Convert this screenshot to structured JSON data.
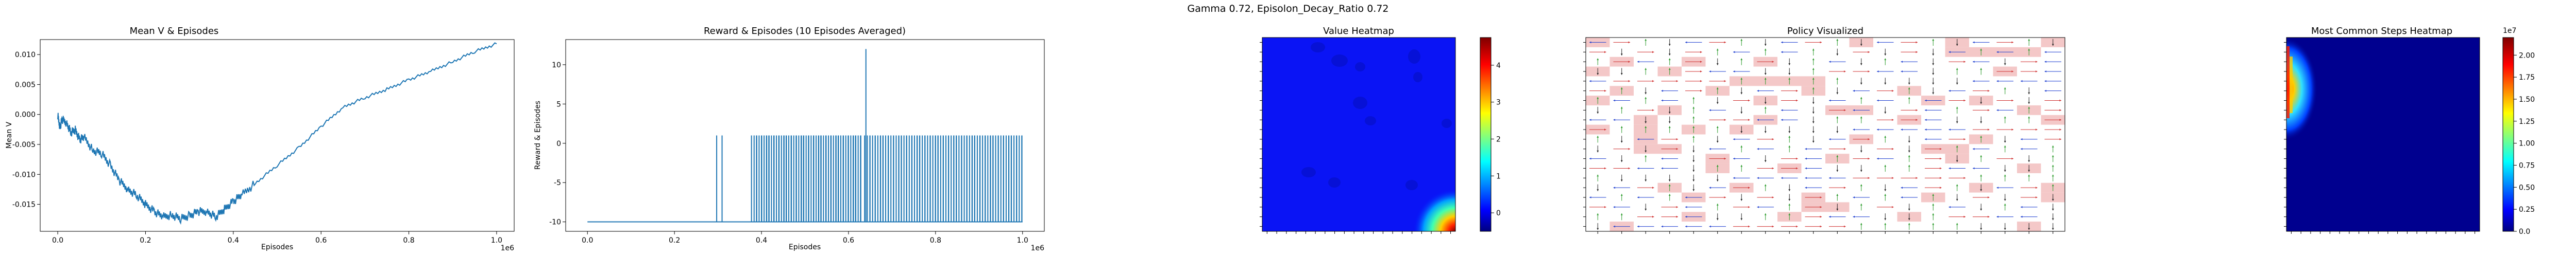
{
  "figure": {
    "suptitle": "Gamma  0.72, Episolon_Decay_Ratio 0.72"
  },
  "chart_data": [
    {
      "type": "line",
      "title": "Mean V & Episodes",
      "xlabel": "Episodes",
      "ylabel": "Mean V",
      "x_offset_label": "1e6",
      "xlim": [
        -0.04,
        1.04
      ],
      "ylim": [
        -0.0195,
        0.0125
      ],
      "xticks": [
        0.0,
        0.2,
        0.4,
        0.6,
        0.8,
        1.0
      ],
      "xtick_labels": [
        "0.0",
        "0.2",
        "0.4",
        "0.6",
        "0.8",
        "1.0"
      ],
      "yticks": [
        -0.015,
        -0.01,
        -0.005,
        0.0,
        0.005,
        0.01
      ],
      "ytick_labels": [
        "-0.015",
        "-0.010",
        "-0.005",
        "0.000",
        "0.005",
        "0.010"
      ],
      "color": "#1f77b4",
      "series": [
        {
          "x": [
            0.0,
            0.005,
            0.01,
            0.02,
            0.03,
            0.04,
            0.05,
            0.06,
            0.08,
            0.1,
            0.12,
            0.14,
            0.16,
            0.18,
            0.2,
            0.22,
            0.24,
            0.26,
            0.28,
            0.3,
            0.32,
            0.34,
            0.36,
            0.38,
            0.4,
            0.42,
            0.45,
            0.5,
            0.55,
            0.6,
            0.65,
            0.7,
            0.75,
            0.8,
            0.85,
            0.9,
            0.95,
            1.0
          ],
          "values": [
            -0.0001,
            -0.0022,
            -0.0008,
            -0.0014,
            -0.003,
            -0.0026,
            -0.0042,
            -0.0038,
            -0.006,
            -0.0065,
            -0.0085,
            -0.011,
            -0.0125,
            -0.0135,
            -0.015,
            -0.0162,
            -0.0171,
            -0.0168,
            -0.0174,
            -0.0169,
            -0.0162,
            -0.0162,
            -0.0171,
            -0.0158,
            -0.0145,
            -0.0134,
            -0.0115,
            -0.0085,
            -0.0055,
            -0.002,
            0.0012,
            0.0028,
            0.0042,
            0.0058,
            0.0072,
            0.0088,
            0.0105,
            0.0118
          ]
        }
      ]
    },
    {
      "type": "line",
      "title": "Reward & Episodes (10 Episodes Averaged)",
      "xlabel": "Episodes",
      "ylabel": "Reward & Episodes",
      "x_offset_label": "1e6",
      "xlim": [
        -0.05,
        1.05
      ],
      "ylim": [
        -11.2,
        13.2
      ],
      "xticks": [
        0.0,
        0.2,
        0.4,
        0.6,
        0.8,
        1.0
      ],
      "xtick_labels": [
        "0.0",
        "0.2",
        "0.4",
        "0.6",
        "0.8",
        "1.0"
      ],
      "yticks": [
        -10,
        -5,
        0,
        5,
        10
      ],
      "ytick_labels": [
        "-10",
        "-5",
        "0",
        "5",
        "10"
      ],
      "color": "#1f77b4",
      "baseline": -10,
      "high": 1,
      "spike": {
        "x": 0.64,
        "value": 12
      },
      "segments": [
        {
          "start": 0.3,
          "end": 0.31,
          "count": 2
        },
        {
          "start": 0.38,
          "end": 0.63,
          "count": 70
        },
        {
          "start": 0.64,
          "end": 1.0,
          "count": 95
        }
      ]
    },
    {
      "type": "heatmap",
      "title": "Value Heatmap",
      "colorbar_ticks": [
        0,
        1,
        2,
        3,
        4
      ],
      "colorbar_tick_labels": [
        "0",
        "1",
        "2",
        "3",
        "4"
      ],
      "vmin": -0.5,
      "vmax": 4.75
    },
    {
      "type": "heatmap",
      "title": "Policy Visualized",
      "grid_size": 20,
      "arrow_colors": {
        "left": "#1f3fd0",
        "right": "#d03030",
        "up": "#2a9a2a",
        "down": "#222222"
      },
      "cell_highlight": "#f4c8c8"
    },
    {
      "type": "heatmap",
      "title": "Most Common Steps Heatmap",
      "colorbar_ticks": [
        0.0,
        0.25,
        0.5,
        0.75,
        1.0,
        1.25,
        1.5,
        1.75,
        2.0
      ],
      "colorbar_tick_labels": [
        "0.0",
        "0.25",
        "0.50",
        "0.75",
        "1.00",
        "1.25",
        "1.50",
        "1.75",
        "2.00"
      ],
      "colorbar_offset_label": "1e7",
      "vmin": 0,
      "vmax": 2.2
    }
  ]
}
